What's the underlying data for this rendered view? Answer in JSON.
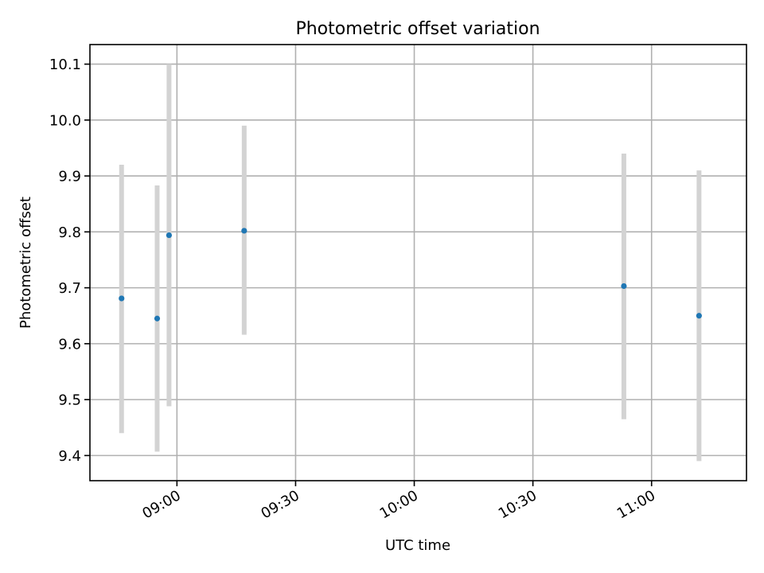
{
  "chart_data": {
    "type": "scatter",
    "title": "Photometric offset variation",
    "xlabel": "UTC time",
    "ylabel": "Photometric offset",
    "x_axis_type": "time",
    "xlim": [
      "08:38",
      "11:24"
    ],
    "ylim": [
      9.355,
      10.135
    ],
    "x_ticks": [
      "09:00",
      "09:30",
      "10:00",
      "10:30",
      "11:00"
    ],
    "y_ticks": [
      9.4,
      9.5,
      9.6,
      9.7,
      9.8,
      9.9,
      10.0,
      10.1
    ],
    "grid": true,
    "point_color": "#1f77b4",
    "errorbar_color": "#d3d3d3",
    "points": [
      {
        "x": "08:46",
        "y": 9.681,
        "err_low": 9.44,
        "err_high": 9.92
      },
      {
        "x": "08:55",
        "y": 9.645,
        "err_low": 9.407,
        "err_high": 9.883
      },
      {
        "x": "08:58",
        "y": 9.794,
        "err_low": 9.488,
        "err_high": 10.1
      },
      {
        "x": "09:17",
        "y": 9.802,
        "err_low": 9.616,
        "err_high": 9.99
      },
      {
        "x": "10:53",
        "y": 9.703,
        "err_low": 9.465,
        "err_high": 9.94
      },
      {
        "x": "11:12",
        "y": 9.65,
        "err_low": 9.39,
        "err_high": 9.91
      }
    ]
  }
}
